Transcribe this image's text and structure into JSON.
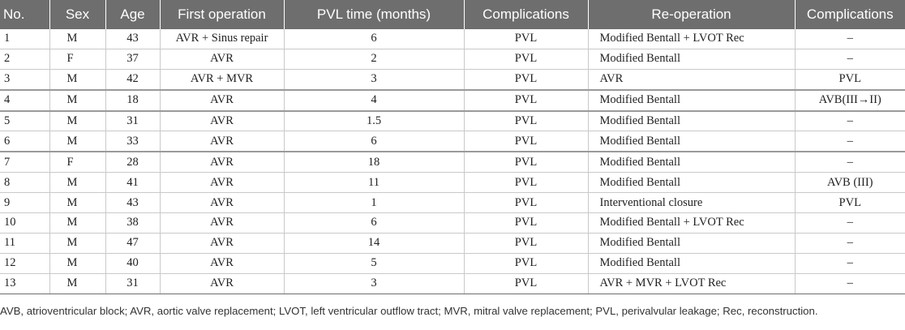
{
  "table": {
    "headers": [
      "No.",
      "Sex",
      "Age",
      "First operation",
      "PVL time (months)",
      "Complications",
      "Re-operation",
      "Complications"
    ],
    "rows": [
      [
        "1",
        "M",
        "43",
        "AVR + Sinus repair",
        "6",
        "PVL",
        "Modified Bentall + LVOT Rec",
        "–"
      ],
      [
        "2",
        "F",
        "37",
        "AVR",
        "2",
        "PVL",
        "Modified Bentall",
        "–"
      ],
      [
        "3",
        "M",
        "42",
        "AVR + MVR",
        "3",
        "PVL",
        "AVR",
        "PVL"
      ],
      [
        "4",
        "M",
        "18",
        "AVR",
        "4",
        "PVL",
        "Modified Bentall",
        "AVB(III→II)"
      ],
      [
        "5",
        "M",
        "31",
        "AVR",
        "1.5",
        "PVL",
        "Modified Bentall",
        "–"
      ],
      [
        "6",
        "M",
        "33",
        "AVR",
        "6",
        "PVL",
        "Modified Bentall",
        "–"
      ],
      [
        "7",
        "F",
        "28",
        "AVR",
        "18",
        "PVL",
        "Modified Bentall",
        "–"
      ],
      [
        "8",
        "M",
        "41",
        "AVR",
        "11",
        "PVL",
        "Modified Bentall",
        "AVB (III)"
      ],
      [
        "9",
        "M",
        "43",
        "AVR",
        "1",
        "PVL",
        "Interventional closure",
        "PVL"
      ],
      [
        "10",
        "M",
        "38",
        "AVR",
        "6",
        "PVL",
        "Modified Bentall + LVOT Rec",
        "–"
      ],
      [
        "11",
        "M",
        "47",
        "AVR",
        "14",
        "PVL",
        "Modified Bentall",
        "–"
      ],
      [
        "12",
        "M",
        "40",
        "AVR",
        "5",
        "PVL",
        "Modified Bentall",
        "–"
      ],
      [
        "13",
        "M",
        "31",
        "AVR",
        "3",
        "PVL",
        "AVR + MVR + LVOT Rec",
        "–"
      ]
    ]
  },
  "footnote": "AVB, atrioventricular block; AVR, aortic valve replacement; LVOT, left ventricular outflow tract; MVR, mitral valve replacement; PVL, perivalvular leakage; Rec, reconstruction."
}
